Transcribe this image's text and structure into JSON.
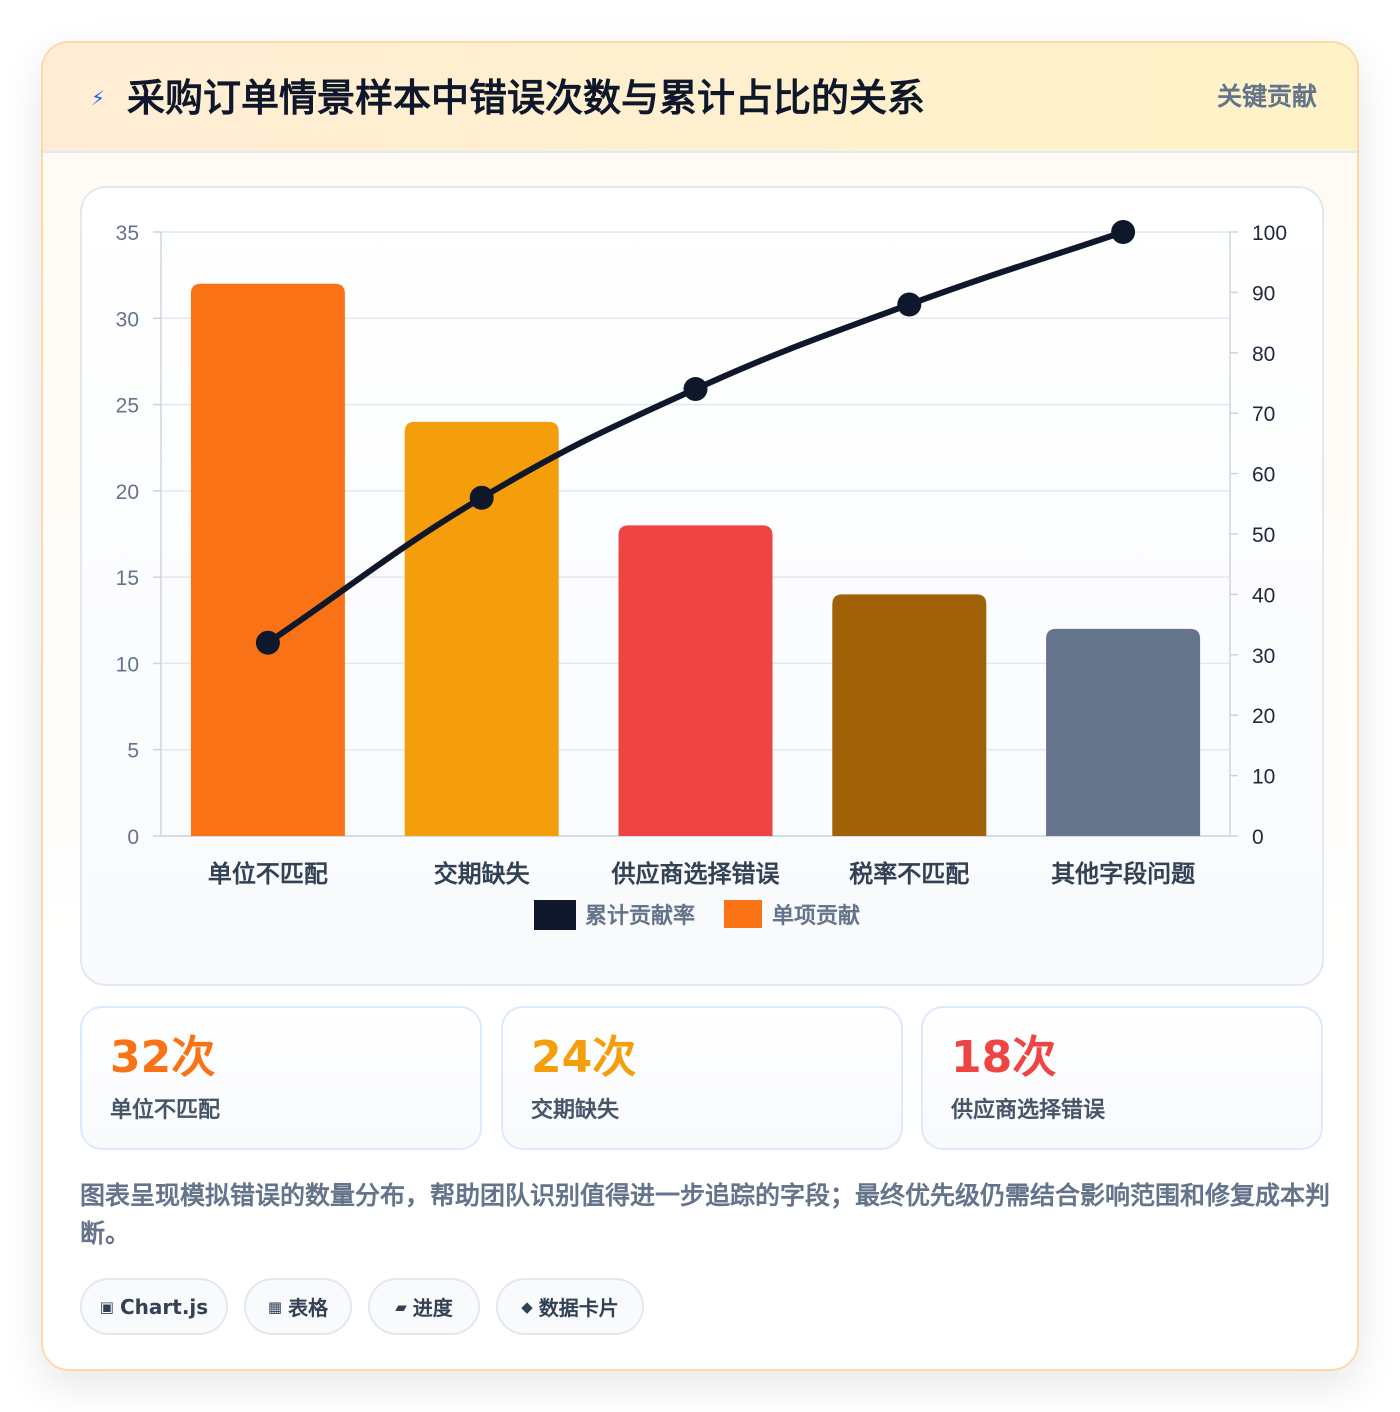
{
  "header": {
    "icon": "lightning-icon",
    "title": "采购订单情景样本中错误次数与累计占比的关系",
    "tag": "关键贡献"
  },
  "chart_data": {
    "type": "bar",
    "categories": [
      "单位不匹配",
      "交期缺失",
      "供应商选择错误",
      "税率不匹配",
      "其他字段问题"
    ],
    "series": [
      {
        "name": "单项贡献",
        "type": "bar",
        "axis": "left",
        "values": [
          32,
          24,
          18,
          14,
          12
        ],
        "colors": [
          "#f97316",
          "#f59e0b",
          "#ef4444",
          "#a16207",
          "#64748b"
        ]
      },
      {
        "name": "累计贡献率",
        "type": "line",
        "axis": "right",
        "values": [
          32,
          56,
          74,
          88,
          100
        ],
        "color": "#0f172a"
      }
    ],
    "y_left": {
      "min": 0,
      "max": 35,
      "step": 5,
      "ticks": [
        "0",
        "5",
        "10",
        "15",
        "20",
        "25",
        "30",
        "35"
      ]
    },
    "y_right": {
      "min": 0,
      "max": 100,
      "step": 10,
      "ticks": [
        "0",
        "10",
        "20",
        "30",
        "40",
        "50",
        "60",
        "70",
        "80",
        "90",
        "100"
      ]
    },
    "grid": true,
    "legend": {
      "position": "bottom",
      "entries": [
        "累计贡献率",
        "单项贡献"
      ],
      "colors": [
        "#0f172a",
        "#f97316"
      ]
    }
  },
  "stats": [
    {
      "value": "32次",
      "label": "单位不匹配",
      "color": "#f97316"
    },
    {
      "value": "24次",
      "label": "交期缺失",
      "color": "#f59e0b"
    },
    {
      "value": "18次",
      "label": "供应商选择错误",
      "color": "#ef4444"
    }
  ],
  "note": "图表呈现模拟错误的数量分布，帮助团队识别值得进一步追踪的字段；最终优先级仍需结合影响范围和修复成本判断。",
  "chips": [
    {
      "icon": "▣",
      "label": "Chart.js"
    },
    {
      "icon": "▦",
      "label": "表格"
    },
    {
      "icon": "▰",
      "label": "进度"
    },
    {
      "icon": "◆",
      "label": "数据卡片"
    }
  ]
}
